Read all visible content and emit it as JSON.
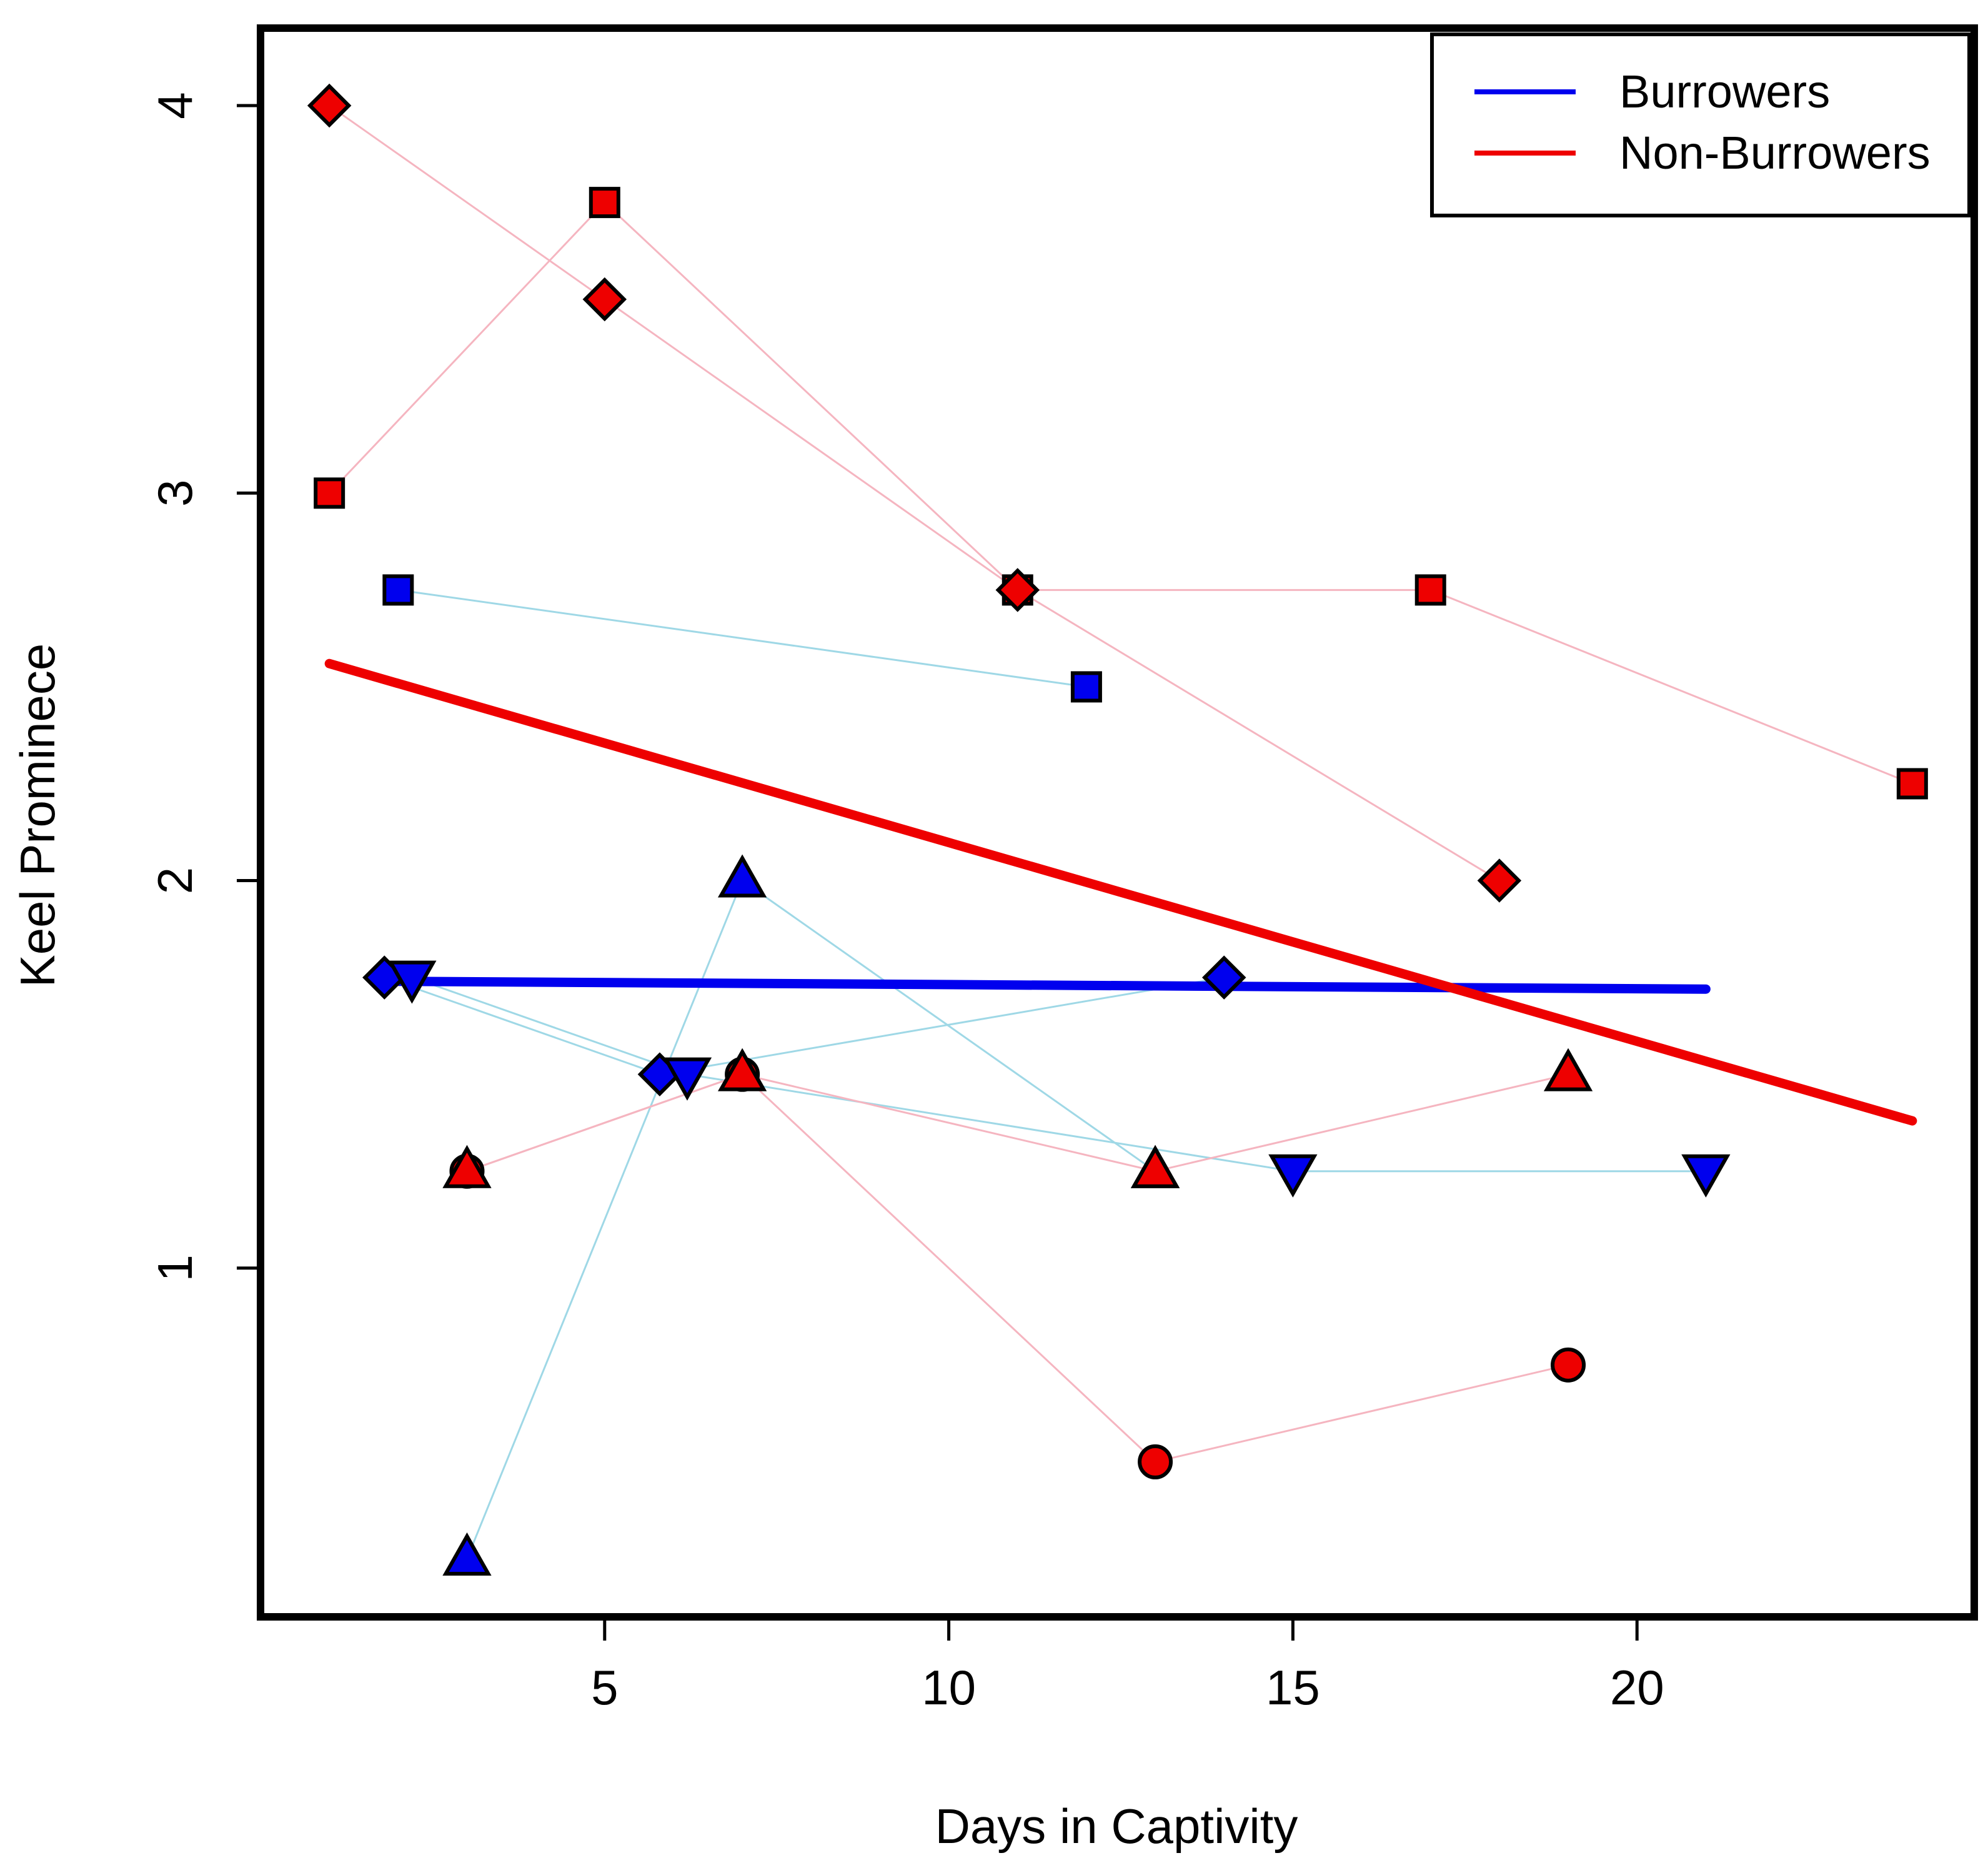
{
  "chart_data": {
    "type": "scatter",
    "title": "",
    "xlabel": "Days in Captivity",
    "ylabel": "Keel Prominece",
    "xlim": [
      0,
      24.9
    ],
    "ylim": [
      0.1,
      4.2
    ],
    "xticks": [
      5,
      10,
      15,
      20
    ],
    "yticks": [
      1,
      2,
      3,
      4
    ],
    "xtick_labels": [
      "5",
      "10",
      "15",
      "20"
    ],
    "ytick_labels": [
      "1",
      "2",
      "3",
      "4"
    ],
    "legend": {
      "position": "top-right",
      "entries": [
        {
          "label": "Burrowers",
          "color": "#0000ee"
        },
        {
          "label": "Non-Burrowers",
          "color": "#ee0000"
        }
      ]
    },
    "colors": {
      "burrowers": "#0000ee",
      "non_burrowers": "#ee0000",
      "burrowers_link": "#9fd8e6",
      "non_burrowers_link": "#f5b5c0"
    },
    "series": [
      {
        "name": "Burrowers square",
        "group": "burrowers",
        "marker": "square",
        "points": [
          [
            2,
            2.75
          ],
          [
            12,
            2.5
          ]
        ]
      },
      {
        "name": "Burrowers diamond",
        "group": "burrowers",
        "marker": "diamond",
        "points": [
          [
            1.8,
            1.75
          ],
          [
            5.8,
            1.5
          ],
          [
            14,
            1.75
          ]
        ]
      },
      {
        "name": "Burrowers down-triangle",
        "group": "burrowers",
        "marker": "triangle-down",
        "points": [
          [
            2.2,
            1.75
          ],
          [
            6.2,
            1.5
          ],
          [
            15,
            1.25
          ],
          [
            21,
            1.25
          ]
        ]
      },
      {
        "name": "Burrowers up-triangle",
        "group": "burrowers",
        "marker": "triangle-up",
        "points": [
          [
            3,
            0.25
          ],
          [
            7,
            2
          ],
          [
            13,
            1.25
          ]
        ]
      },
      {
        "name": "Non-Burrowers diamond",
        "group": "non_burrowers",
        "marker": "diamond",
        "points": [
          [
            1,
            4
          ],
          [
            5,
            3.5
          ],
          [
            11,
            2.75
          ],
          [
            18,
            2
          ]
        ]
      },
      {
        "name": "Non-Burrowers square",
        "group": "non_burrowers",
        "marker": "square",
        "points": [
          [
            1,
            3
          ],
          [
            5,
            3.75
          ],
          [
            11,
            2.75
          ],
          [
            17,
            2.75
          ],
          [
            24,
            2.25
          ]
        ]
      },
      {
        "name": "Non-Burrowers circle",
        "group": "non_burrowers",
        "marker": "circle",
        "points": [
          [
            3,
            1.25
          ],
          [
            7,
            1.5
          ],
          [
            13,
            0.5
          ],
          [
            19,
            0.75
          ]
        ]
      },
      {
        "name": "Non-Burrowers up-triangle",
        "group": "non_burrowers",
        "marker": "triangle-up",
        "points": [
          [
            3,
            1.25
          ],
          [
            7,
            1.5
          ],
          [
            13,
            1.25
          ],
          [
            19,
            1.5
          ]
        ]
      }
    ],
    "trend_lines": [
      {
        "name": "Burrowers",
        "group": "burrowers",
        "x": [
          2,
          21
        ],
        "y": [
          1.74,
          1.72
        ]
      },
      {
        "name": "Non-Burrowers",
        "group": "non_burrowers",
        "x": [
          1,
          24
        ],
        "y": [
          2.56,
          1.38
        ]
      }
    ]
  }
}
